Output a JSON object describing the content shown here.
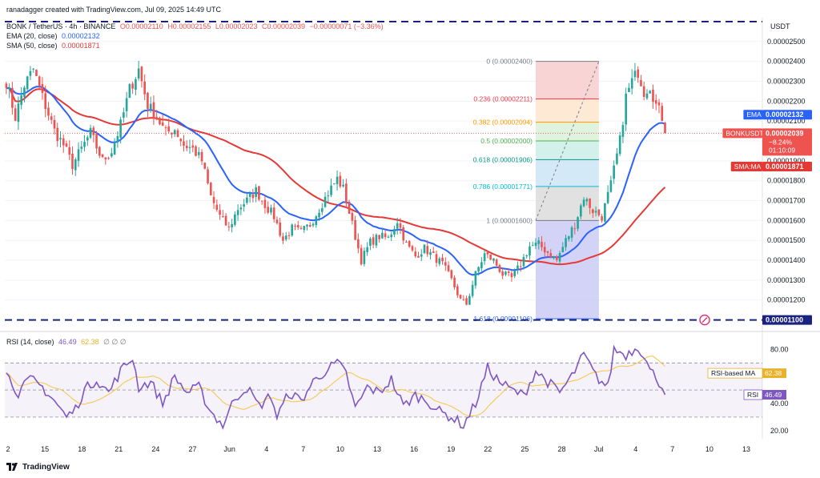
{
  "header": {
    "line1": "BONK / TetherUS · 4h · BINANCE",
    "credit": "ranadagger created with TradingView.com, Jul 09, 2025 14:49 UTC",
    "ohlc": {
      "o": "O0.00002110",
      "h": "H0.00002155",
      "l": "L0.00002023",
      "c": "C0.00002039",
      "chg": "−0.00000071 (−3.36%)"
    },
    "ema_label": "EMA (20, close)",
    "ema_value": "0.00002132",
    "sma_label": "SMA (50, close)",
    "sma_value": "0.00001871",
    "rsi_label": "RSI (14, close)",
    "rsi_value": "46.49",
    "rsi_ma_value": "62.38",
    "rsi_extra": "∅ ∅ ∅"
  },
  "currency": "USDT",
  "brand": "TradingView",
  "colors": {
    "up": "#26a69a",
    "down": "#ef5350",
    "ema": "#2962ff",
    "sma": "#e53935",
    "rsi": "#7e57c2",
    "rsi_ma": "#f5c542",
    "level": "#1a237e"
  },
  "price_badges": [
    {
      "label": "EMA",
      "value": "0.00002132",
      "color": "#2962ff"
    },
    {
      "label": "BONKUSDT",
      "value": "0.00002039",
      "sub1": "−8.24%",
      "sub2": "01:10:09",
      "color": "#ef5350"
    },
    {
      "label": "SMA:MA",
      "value": "0.00001871",
      "color": "#e53935"
    },
    {
      "label": "",
      "value": "0.00001100",
      "color": "#1a237e"
    }
  ],
  "rsi_badges": [
    {
      "label": "RSI-based MA",
      "value": "62.38",
      "color": "#e9b22a"
    },
    {
      "label": "RSI",
      "value": "46.49",
      "color": "#7e57c2"
    }
  ],
  "chart_data": {
    "type": "candlestick",
    "title": "BONK / TetherUS · 4h · BINANCE",
    "y_axis": {
      "min": 1.05e-05,
      "max": 2.62e-05,
      "ticks": [
        "0.00002500",
        "0.00002400",
        "0.00002300",
        "0.00002200",
        "0.00002100",
        "0.00002000",
        "0.00001900",
        "0.00001800",
        "0.00001700",
        "0.00001600",
        "0.00001500",
        "0.00001400",
        "0.00001300",
        "0.00001200"
      ]
    },
    "x_axis": {
      "labels": [
        "2",
        "15",
        "18",
        "21",
        "24",
        "27",
        "Jun",
        "4",
        "7",
        "10",
        "13",
        "16",
        "19",
        "22",
        "25",
        "28",
        "Jul",
        "4",
        "7",
        "10",
        "13"
      ]
    },
    "horizontal_lines": [
      2.6e-05,
      1.1e-05
    ],
    "close_anchors": [
      [
        0,
        2.3e-05
      ],
      [
        3,
        2.12e-05
      ],
      [
        6,
        2.28e-05
      ],
      [
        9,
        2.36e-05
      ],
      [
        12,
        2.22e-05
      ],
      [
        16,
        2.05e-05
      ],
      [
        19,
        1.98e-05
      ],
      [
        22,
        1.88e-05
      ],
      [
        25,
        1.96e-05
      ],
      [
        28,
        2.04e-05
      ],
      [
        32,
        1.9e-05
      ],
      [
        35,
        1.95e-05
      ],
      [
        38,
        2.08e-05
      ],
      [
        41,
        2.26e-05
      ],
      [
        44,
        2.36e-05
      ],
      [
        47,
        2.18e-05
      ],
      [
        50,
        2.12e-05
      ],
      [
        53,
        2.04e-05
      ],
      [
        56,
        2.06e-05
      ],
      [
        59,
        1.98e-05
      ],
      [
        62,
        1.96e-05
      ],
      [
        65,
        1.9e-05
      ],
      [
        68,
        1.72e-05
      ],
      [
        71,
        1.62e-05
      ],
      [
        74,
        1.56e-05
      ],
      [
        77,
        1.66e-05
      ],
      [
        80,
        1.7e-05
      ],
      [
        83,
        1.75e-05
      ],
      [
        86,
        1.68e-05
      ],
      [
        89,
        1.62e-05
      ],
      [
        92,
        1.5e-05
      ],
      [
        95,
        1.56e-05
      ],
      [
        98,
        1.54e-05
      ],
      [
        101,
        1.58e-05
      ],
      [
        104,
        1.66e-05
      ],
      [
        107,
        1.74e-05
      ],
      [
        110,
        1.81e-05
      ],
      [
        112,
        1.76e-05
      ],
      [
        115,
        1.58e-05
      ],
      [
        118,
        1.4e-05
      ],
      [
        121,
        1.49e-05
      ],
      [
        124,
        1.52e-05
      ],
      [
        127,
        1.51e-05
      ],
      [
        130,
        1.6e-05
      ],
      [
        133,
        1.48e-05
      ],
      [
        136,
        1.42e-05
      ],
      [
        139,
        1.46e-05
      ],
      [
        142,
        1.42e-05
      ],
      [
        145,
        1.38e-05
      ],
      [
        148,
        1.3e-05
      ],
      [
        151,
        1.2e-05
      ],
      [
        153,
        1.18e-05
      ],
      [
        156,
        1.33e-05
      ],
      [
        159,
        1.43e-05
      ],
      [
        162,
        1.4e-05
      ],
      [
        165,
        1.33e-05
      ],
      [
        168,
        1.31e-05
      ],
      [
        171,
        1.38e-05
      ],
      [
        174,
        1.47e-05
      ],
      [
        177,
        1.48e-05
      ],
      [
        180,
        1.44e-05
      ],
      [
        183,
        1.4e-05
      ],
      [
        186,
        1.5e-05
      ],
      [
        189,
        1.58e-05
      ],
      [
        192,
        1.72e-05
      ],
      [
        195,
        1.65e-05
      ],
      [
        198,
        1.62e-05
      ],
      [
        201,
        1.78e-05
      ],
      [
        204,
        2e-05
      ],
      [
        206,
        2.22e-05
      ],
      [
        208,
        2.3e-05
      ],
      [
        210,
        2.35e-05
      ],
      [
        212,
        2.25e-05
      ],
      [
        214,
        2.28e-05
      ],
      [
        216,
        2.18e-05
      ],
      [
        218,
        2.12e-05
      ],
      [
        219,
        2.04e-05
      ]
    ],
    "rsi_anchors": [
      [
        0,
        62
      ],
      [
        4,
        48
      ],
      [
        8,
        58
      ],
      [
        12,
        52
      ],
      [
        16,
        42
      ],
      [
        20,
        30
      ],
      [
        23,
        36
      ],
      [
        26,
        50
      ],
      [
        30,
        58
      ],
      [
        34,
        48
      ],
      [
        38,
        64
      ],
      [
        42,
        74
      ],
      [
        44,
        52
      ],
      [
        48,
        56
      ],
      [
        52,
        40
      ],
      [
        56,
        60
      ],
      [
        60,
        48
      ],
      [
        64,
        52
      ],
      [
        68,
        34
      ],
      [
        72,
        24
      ],
      [
        76,
        44
      ],
      [
        80,
        52
      ],
      [
        84,
        38
      ],
      [
        88,
        46
      ],
      [
        90,
        30
      ],
      [
        94,
        48
      ],
      [
        98,
        42
      ],
      [
        102,
        56
      ],
      [
        106,
        64
      ],
      [
        110,
        70
      ],
      [
        113,
        62
      ],
      [
        116,
        36
      ],
      [
        120,
        52
      ],
      [
        124,
        48
      ],
      [
        128,
        58
      ],
      [
        132,
        38
      ],
      [
        136,
        46
      ],
      [
        140,
        42
      ],
      [
        144,
        34
      ],
      [
        148,
        30
      ],
      [
        152,
        24
      ],
      [
        156,
        40
      ],
      [
        160,
        66
      ],
      [
        164,
        56
      ],
      [
        168,
        50
      ],
      [
        172,
        46
      ],
      [
        176,
        64
      ],
      [
        180,
        56
      ],
      [
        184,
        48
      ],
      [
        188,
        60
      ],
      [
        192,
        76
      ],
      [
        196,
        60
      ],
      [
        200,
        52
      ],
      [
        202,
        80
      ],
      [
        206,
        76
      ],
      [
        210,
        82
      ],
      [
        212,
        76
      ],
      [
        214,
        64
      ],
      [
        216,
        60
      ],
      [
        218,
        52
      ],
      [
        219,
        46
      ]
    ],
    "fibonacci": [
      {
        "ratio": "0",
        "label": "0 (0.00002400)",
        "price": 2.4e-05
      },
      {
        "ratio": "0.236",
        "label": "0.236 (0.00002211)",
        "price": 2.211e-05
      },
      {
        "ratio": "0.382",
        "label": "0.382 (0.00002094)",
        "price": 2.094e-05
      },
      {
        "ratio": "0.5",
        "label": "0.5 (0.00002000)",
        "price": 2e-05
      },
      {
        "ratio": "0.618",
        "label": "0.618 (0.00001906)",
        "price": 1.906e-05
      },
      {
        "ratio": "0.786",
        "label": "0.786 (0.00001771)",
        "price": 1.771e-05
      },
      {
        "ratio": "1",
        "label": "1 (0.00001600)",
        "price": 1.6e-05
      },
      {
        "ratio": "1.618",
        "label": "1.618 (0.00001106)",
        "price": 1.106e-05
      }
    ],
    "rsi_axis": {
      "ticks": [
        "80.00",
        "40.00",
        "20.00"
      ],
      "bands": [
        70,
        50,
        30
      ]
    }
  }
}
